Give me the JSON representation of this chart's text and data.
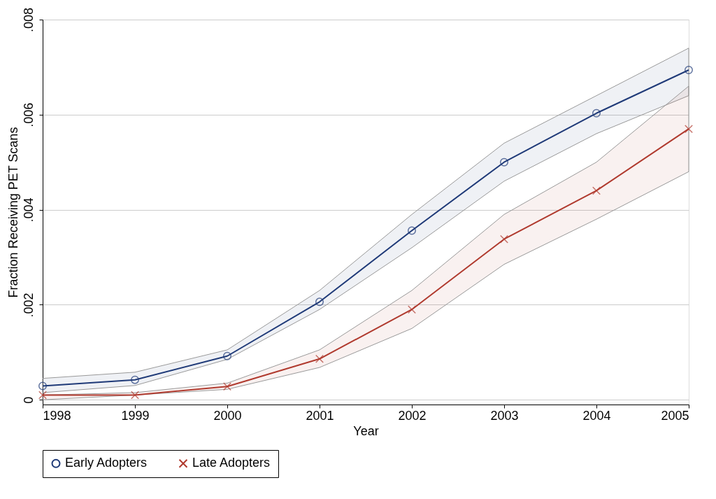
{
  "chart_data": {
    "type": "line",
    "xlabel": "Year",
    "ylabel": "Fraction Receiving PET Scans",
    "x": [
      1998,
      1999,
      2000,
      2001,
      2002,
      2003,
      2004,
      2005
    ],
    "xlim": [
      1998,
      2005
    ],
    "xticks": [
      1998,
      1999,
      2000,
      2001,
      2002,
      2003,
      2004,
      2005
    ],
    "ylim": [
      -0.0001,
      0.008
    ],
    "yticks": [
      0,
      {
        "value": 0.002,
        "label": ".002"
      },
      {
        "value": 0.004,
        "label": ".004"
      },
      {
        "value": 0.006,
        "label": ".006"
      },
      {
        "value": 0.008,
        "label": ".008"
      }
    ],
    "grid": "y",
    "legend": "bottom",
    "line_style": "solid",
    "series": [
      {
        "name": "Early Adopters",
        "color": "#1f3a78",
        "marker": "circle",
        "values": [
          0.00029,
          0.00042,
          0.00092,
          0.00206,
          0.00356,
          0.005,
          0.00603,
          0.00694
        ],
        "lower": [
          0.00015,
          0.0003,
          0.00085,
          0.0019,
          0.0032,
          0.0046,
          0.0056,
          0.0064
        ],
        "upper": [
          0.00045,
          0.00058,
          0.00105,
          0.0023,
          0.0039,
          0.0054,
          0.0064,
          0.0074
        ]
      },
      {
        "name": "Late Adopters",
        "color": "#b03a2e",
        "marker": "cross",
        "values": [
          0.0001,
          0.0001,
          0.00028,
          0.00086,
          0.0019,
          0.00338,
          0.0044,
          0.0057
        ],
        "lower": [
          0.0,
          0.0001,
          0.00022,
          0.00068,
          0.0015,
          0.00285,
          0.0038,
          0.0048
        ],
        "upper": [
          0.0001,
          0.00015,
          0.00035,
          0.00105,
          0.0023,
          0.0039,
          0.005,
          0.0066
        ]
      }
    ]
  }
}
